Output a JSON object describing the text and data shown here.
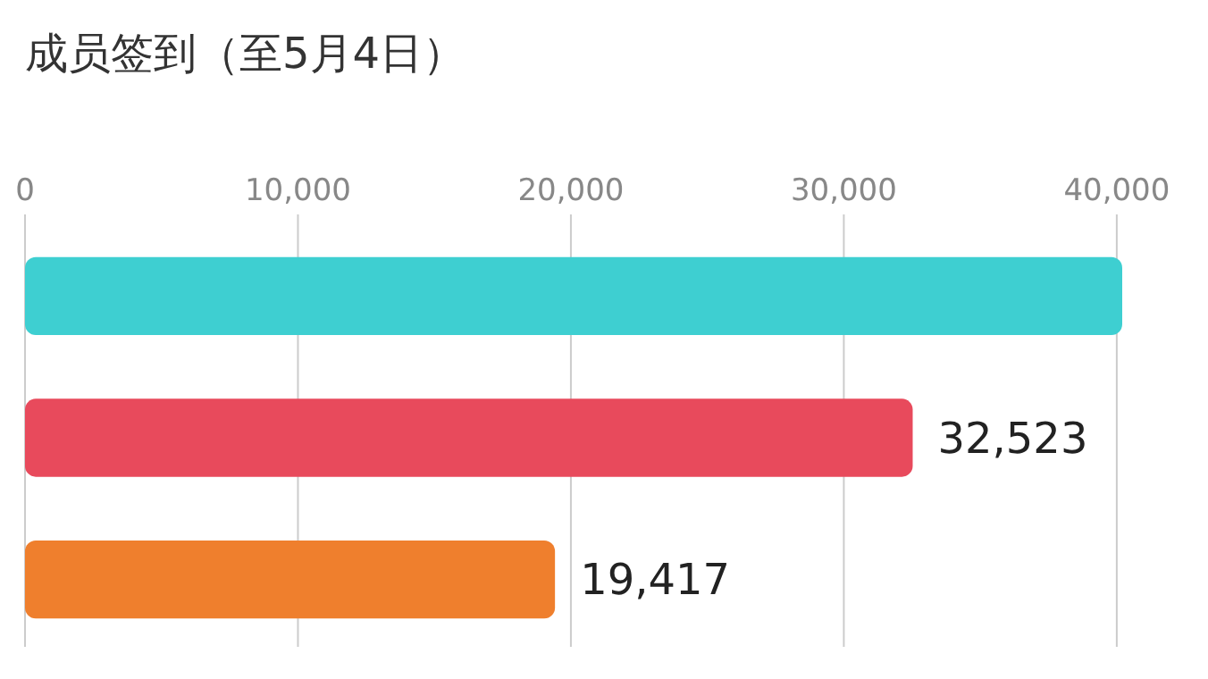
{
  "chart_data": {
    "type": "bar",
    "orientation": "horizontal",
    "title": "成员签到（至5月4日）",
    "categories": [
      null,
      null,
      null
    ],
    "values": [
      40200,
      32523,
      19417
    ],
    "colors": [
      "#3ecfd1",
      "#e84a5c",
      "#ef7f2d"
    ],
    "value_labels": [
      null,
      "32,523",
      "19,417"
    ],
    "xlim": [
      0,
      40200
    ],
    "xticks": [
      0,
      {
        "value": 10000,
        "label": "10,000"
      },
      {
        "value": 20000,
        "label": "20,000"
      },
      {
        "value": 30000,
        "label": "30,000"
      },
      {
        "value": 40000,
        "label": "40,000"
      }
    ],
    "grid": "x"
  }
}
